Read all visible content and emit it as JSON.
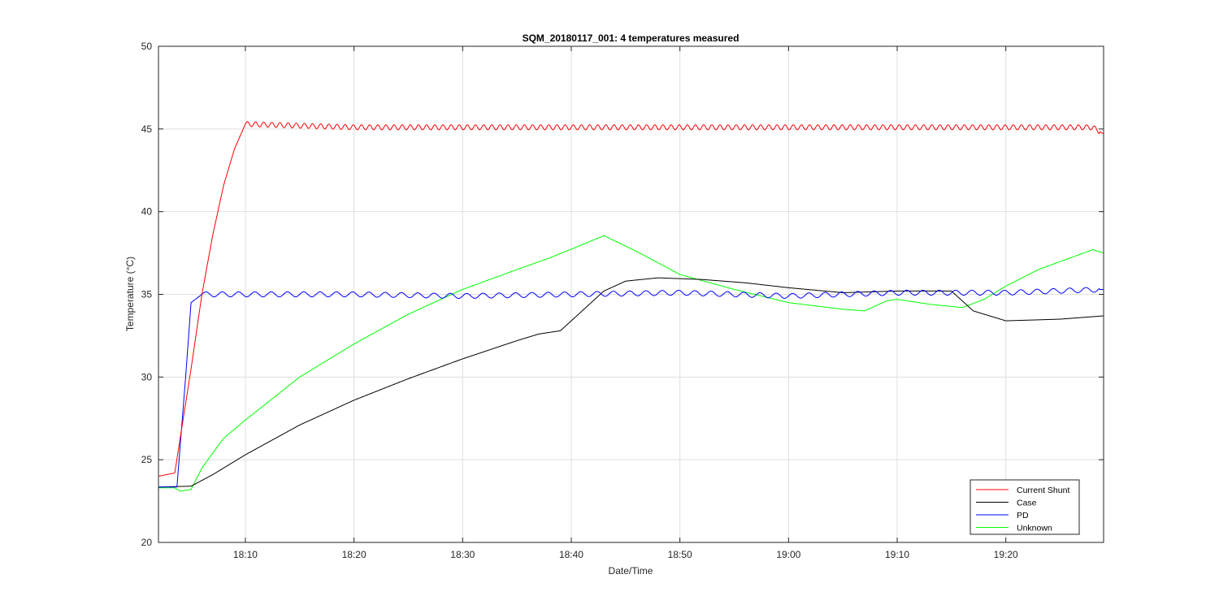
{
  "chart_data": {
    "type": "line",
    "title": "SQM_20180117_001: 4 temperatures measured",
    "xlabel": "Date/Time",
    "ylabel": "Temperature (°C)",
    "x_unit": "time of day (HH:MM)",
    "xlim": [
      "18:02",
      "19:29"
    ],
    "ylim": [
      20,
      50
    ],
    "x_ticks": [
      "18:10",
      "18:20",
      "18:30",
      "18:40",
      "18:50",
      "19:00",
      "19:10",
      "19:20"
    ],
    "y_ticks": [
      20,
      25,
      30,
      35,
      40,
      45,
      50
    ],
    "grid": true,
    "legend_position": "bottom-right",
    "series": [
      {
        "name": "Current Shunt",
        "color": "#ff0000",
        "oscillation": {
          "amplitude": 0.15,
          "period_minutes": 0.75,
          "from": "18:10"
        },
        "points": [
          [
            "18:02",
            24.0
          ],
          [
            "18:03.5",
            24.2
          ],
          [
            "18:05",
            30.5
          ],
          [
            "18:06",
            35.0
          ],
          [
            "18:07",
            38.6
          ],
          [
            "18:08",
            41.6
          ],
          [
            "18:09",
            43.8
          ],
          [
            "18:10",
            45.3
          ],
          [
            "18:20",
            45.1
          ],
          [
            "18:30",
            45.1
          ],
          [
            "18:40",
            45.1
          ],
          [
            "18:50",
            45.1
          ],
          [
            "19:00",
            45.1
          ],
          [
            "19:10",
            45.1
          ],
          [
            "19:20",
            45.1
          ],
          [
            "19:28",
            45.1
          ],
          [
            "19:29",
            44.7
          ]
        ]
      },
      {
        "name": "Case",
        "color": "#000000",
        "points": [
          [
            "18:02",
            23.35
          ],
          [
            "18:05",
            23.4
          ],
          [
            "18:07",
            24.1
          ],
          [
            "18:10",
            25.3
          ],
          [
            "18:15",
            27.1
          ],
          [
            "18:20",
            28.6
          ],
          [
            "18:25",
            29.9
          ],
          [
            "18:30",
            31.1
          ],
          [
            "18:35",
            32.2
          ],
          [
            "18:37",
            32.6
          ],
          [
            "18:39",
            32.8
          ],
          [
            "18:41",
            34.0
          ],
          [
            "18:43",
            35.2
          ],
          [
            "18:45",
            35.8
          ],
          [
            "18:48",
            36.0
          ],
          [
            "18:52",
            35.9
          ],
          [
            "18:56",
            35.7
          ],
          [
            "19:00",
            35.4
          ],
          [
            "19:05",
            35.1
          ],
          [
            "19:10",
            35.2
          ],
          [
            "19:15",
            35.2
          ],
          [
            "19:17",
            34.0
          ],
          [
            "19:20",
            33.4
          ],
          [
            "19:25",
            33.5
          ],
          [
            "19:29",
            33.7
          ]
        ]
      },
      {
        "name": "PD",
        "color": "#0000ff",
        "oscillation": {
          "amplitude": 0.15,
          "period_minutes": 1.5,
          "from": "18:06"
        },
        "points": [
          [
            "18:02",
            23.35
          ],
          [
            "18:03.7",
            23.35
          ],
          [
            "18:04.5",
            30.0
          ],
          [
            "18:05",
            34.5
          ],
          [
            "18:06",
            35.0
          ],
          [
            "18:20",
            35.0
          ],
          [
            "18:30",
            34.9
          ],
          [
            "18:40",
            35.0
          ],
          [
            "18:50",
            35.1
          ],
          [
            "19:00",
            34.9
          ],
          [
            "19:10",
            35.1
          ],
          [
            "19:20",
            35.1
          ],
          [
            "19:29",
            35.3
          ]
        ]
      },
      {
        "name": "Unknown",
        "color": "#00ff00",
        "points": [
          [
            "18:02",
            23.3
          ],
          [
            "18:03.5",
            23.3
          ],
          [
            "18:04",
            23.1
          ],
          [
            "18:05",
            23.2
          ],
          [
            "18:06",
            24.5
          ],
          [
            "18:08",
            26.3
          ],
          [
            "18:10",
            27.4
          ],
          [
            "18:15",
            30.0
          ],
          [
            "18:20",
            32.0
          ],
          [
            "18:25",
            33.8
          ],
          [
            "18:30",
            35.3
          ],
          [
            "18:35",
            36.5
          ],
          [
            "18:38",
            37.2
          ],
          [
            "18:41",
            38.0
          ],
          [
            "18:43",
            38.55
          ],
          [
            "18:46",
            37.6
          ],
          [
            "18:50",
            36.2
          ],
          [
            "18:55",
            35.3
          ],
          [
            "19:00",
            34.5
          ],
          [
            "19:05",
            34.1
          ],
          [
            "19:07",
            34.0
          ],
          [
            "19:09",
            34.6
          ],
          [
            "19:10",
            34.7
          ],
          [
            "19:13",
            34.4
          ],
          [
            "19:16",
            34.2
          ],
          [
            "19:18",
            34.7
          ],
          [
            "19:20",
            35.5
          ],
          [
            "19:23",
            36.5
          ],
          [
            "19:28",
            37.7
          ],
          [
            "19:29",
            37.5
          ]
        ]
      }
    ]
  }
}
